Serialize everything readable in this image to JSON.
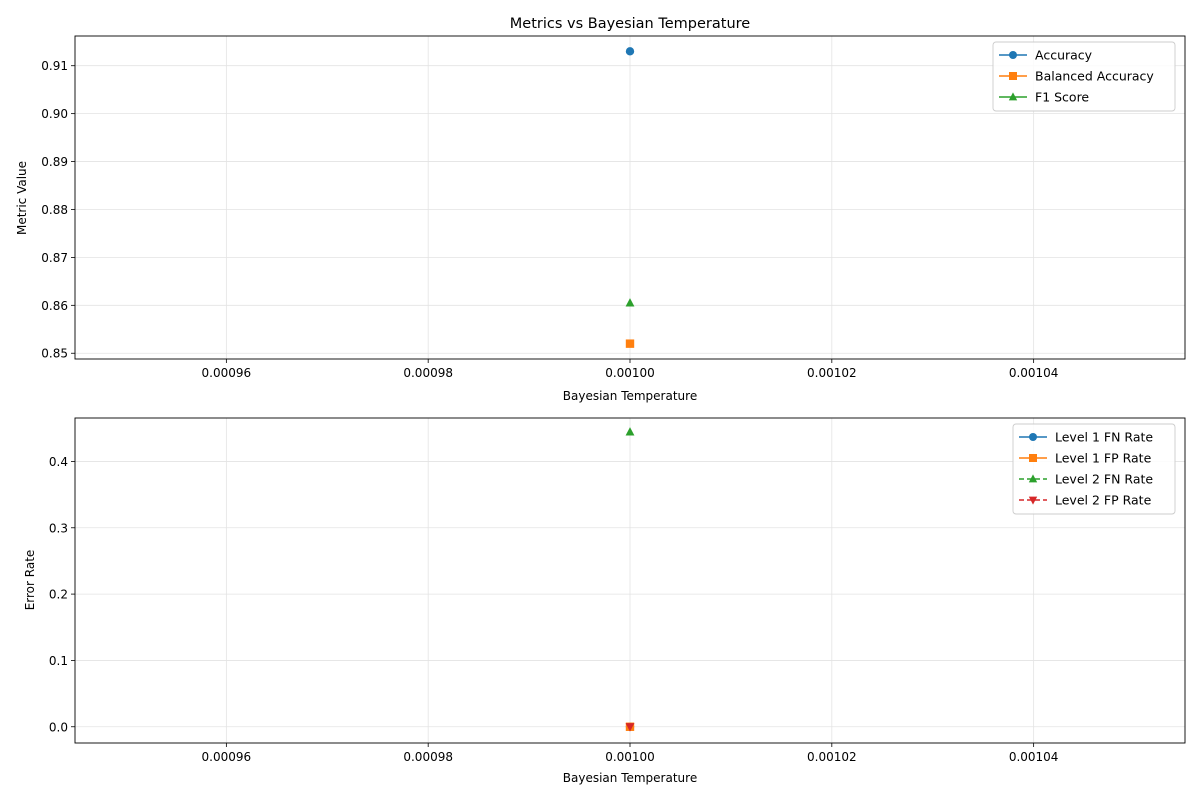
{
  "chart_data": [
    {
      "type": "line",
      "title": "Metrics vs Bayesian Temperature",
      "xlabel": "Bayesian Temperature",
      "ylabel": "Metric Value",
      "xlim": [
        0.000945,
        0.001055
      ],
      "ylim": [
        0.8488,
        0.9162
      ],
      "xticks": [
        0.00096,
        0.00098,
        0.001,
        0.00102,
        0.00104
      ],
      "xtick_labels": [
        "0.00096",
        "0.00098",
        "0.00100",
        "0.00102",
        "0.00104"
      ],
      "yticks": [
        0.85,
        0.86,
        0.87,
        0.88,
        0.89,
        0.9,
        0.91
      ],
      "ytick_labels": [
        "0.85",
        "0.86",
        "0.87",
        "0.88",
        "0.89",
        "0.90",
        "0.91"
      ],
      "grid": true,
      "legend_position": "top-right",
      "series": [
        {
          "name": "Accuracy",
          "color": "#1f77b4",
          "marker": "circle",
          "linestyle": "solid",
          "x": [
            0.001
          ],
          "y": [
            0.913
          ]
        },
        {
          "name": "Balanced Accuracy",
          "color": "#ff7f0e",
          "marker": "square",
          "linestyle": "solid",
          "x": [
            0.001
          ],
          "y": [
            0.852
          ]
        },
        {
          "name": "F1 Score",
          "color": "#2ca02c",
          "marker": "triangle-up",
          "linestyle": "solid",
          "x": [
            0.001
          ],
          "y": [
            0.8605
          ]
        }
      ]
    },
    {
      "type": "line",
      "title": "",
      "xlabel": "Bayesian Temperature",
      "ylabel": "Error Rate",
      "xlim": [
        0.000945,
        0.001055
      ],
      "ylim": [
        -0.0245,
        0.4655
      ],
      "xticks": [
        0.00096,
        0.00098,
        0.001,
        0.00102,
        0.00104
      ],
      "xtick_labels": [
        "0.00096",
        "0.00098",
        "0.00100",
        "0.00102",
        "0.00104"
      ],
      "yticks": [
        0.0,
        0.1,
        0.2,
        0.3,
        0.4
      ],
      "ytick_labels": [
        "0.0",
        "0.1",
        "0.2",
        "0.3",
        "0.4"
      ],
      "grid": true,
      "legend_position": "top-right",
      "series": [
        {
          "name": "Level 1 FN Rate",
          "color": "#1f77b4",
          "marker": "circle",
          "linestyle": "solid",
          "x": [
            0.001
          ],
          "y": [
            0.0
          ]
        },
        {
          "name": "Level 1 FP Rate",
          "color": "#ff7f0e",
          "marker": "square",
          "linestyle": "solid",
          "x": [
            0.001
          ],
          "y": [
            0.0
          ]
        },
        {
          "name": "Level 2 FN Rate",
          "color": "#2ca02c",
          "marker": "triangle-up",
          "linestyle": "dashed",
          "x": [
            0.001
          ],
          "y": [
            0.4445
          ]
        },
        {
          "name": "Level 2 FP Rate",
          "color": "#d62728",
          "marker": "triangle-down",
          "linestyle": "dashed",
          "x": [
            0.001
          ],
          "y": [
            0.0
          ]
        }
      ]
    }
  ]
}
